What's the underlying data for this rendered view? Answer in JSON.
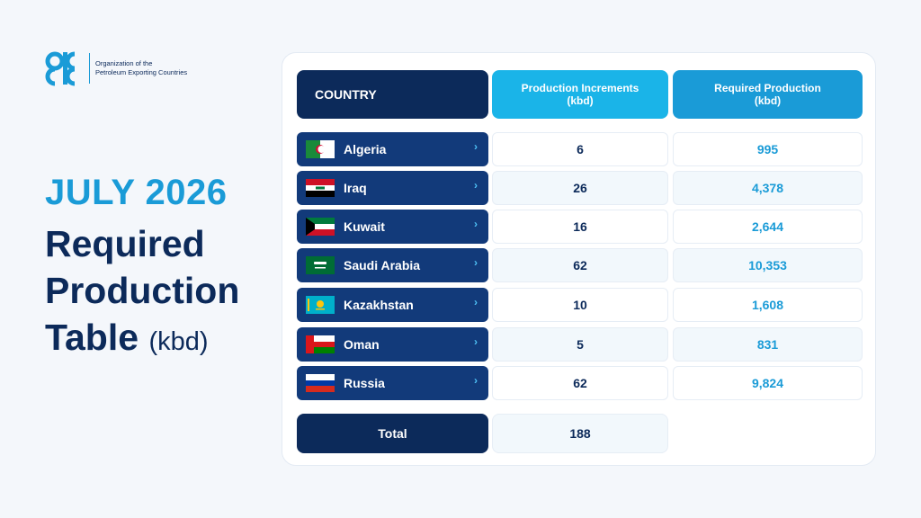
{
  "logo": {
    "org_line1": "Organization of the",
    "org_line2": "Petroleum Exporting Countries",
    "icon": "opec-logo-icon",
    "color": "#1a9bd7"
  },
  "headline": {
    "year": "JULY 2026",
    "line1": "Required",
    "line2": "Production",
    "line3": "Table",
    "unit": "(kbd)"
  },
  "table": {
    "headers": {
      "country": "COUNTRY",
      "increments_l1": "Production Increments",
      "increments_l2": "(kbd)",
      "required_l1": "Required Production",
      "required_l2": "(kbd)"
    },
    "rows": [
      {
        "country": "Algeria",
        "flag": "algeria-flag-icon",
        "increment": "6",
        "required": "995"
      },
      {
        "country": "Iraq",
        "flag": "iraq-flag-icon",
        "increment": "26",
        "required": "4,378"
      },
      {
        "country": "Kuwait",
        "flag": "kuwait-flag-icon",
        "increment": "16",
        "required": "2,644"
      },
      {
        "country": "Saudi Arabia",
        "flag": "saudi-arabia-flag-icon",
        "increment": "62",
        "required": "10,353"
      },
      {
        "country": "Kazakhstan",
        "flag": "kazakhstan-flag-icon",
        "increment": "10",
        "required": "1,608"
      },
      {
        "country": "Oman",
        "flag": "oman-flag-icon",
        "increment": "5",
        "required": "831"
      },
      {
        "country": "Russia",
        "flag": "russia-flag-icon",
        "increment": "62",
        "required": "9,824"
      }
    ],
    "total_label": "Total",
    "total_value": "188",
    "chevron": "›"
  },
  "colors": {
    "navy": "#0c2a5a",
    "row_blue": "#123a7a",
    "accent": "#1a9bd7",
    "light_accent": "#1ab4e8"
  }
}
